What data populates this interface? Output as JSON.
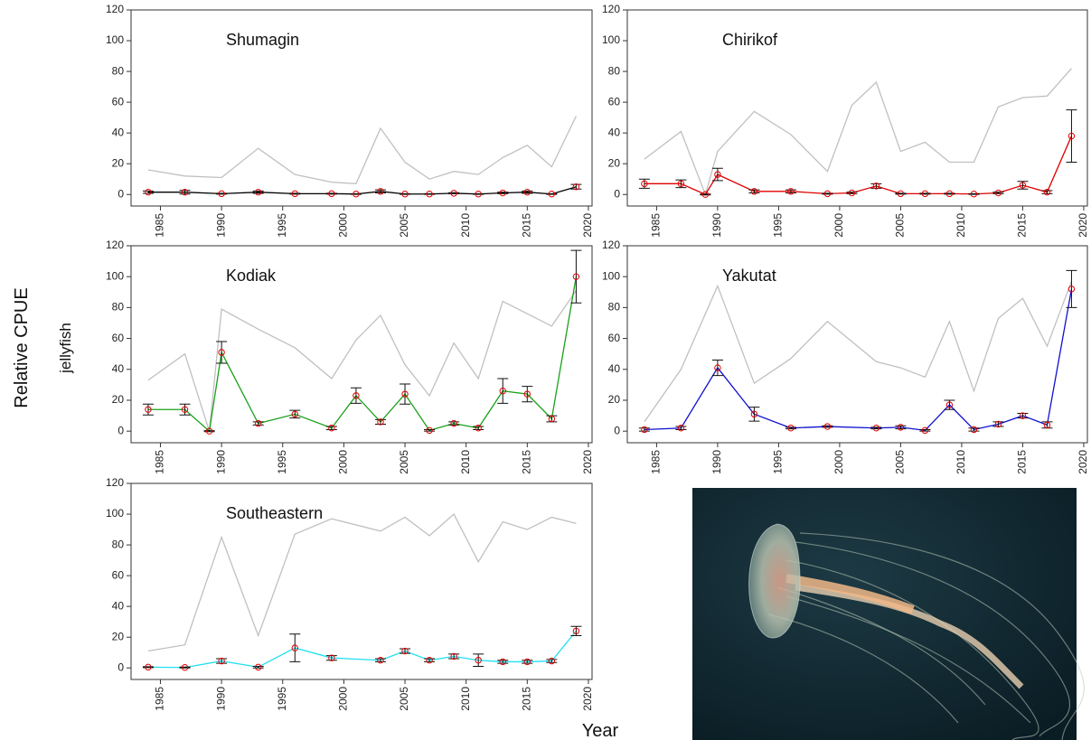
{
  "ylabel": "Relative CPUE",
  "subtitle": "jellyfish",
  "xlabel": "Year",
  "chart_data": [
    {
      "type": "line",
      "title": "Shumagin",
      "x": [
        1984,
        1987,
        1990,
        1993,
        1996,
        1999,
        2001,
        2003,
        2005,
        2007,
        2009,
        2011,
        2013,
        2015,
        2017,
        2019
      ],
      "series": [
        {
          "color": "#c0c0c0",
          "values": [
            16,
            12,
            11,
            30,
            13,
            8,
            7,
            43,
            21,
            10,
            15,
            13,
            24,
            32,
            18,
            51
          ]
        },
        {
          "color": "#000000",
          "marker_color": "#e00000",
          "values": [
            1.5,
            1.5,
            0.5,
            1.5,
            0.5,
            0.5,
            0.3,
            2,
            0.3,
            0.3,
            0.8,
            0.3,
            1,
            1.5,
            0.3,
            5
          ],
          "errors": [
            0.8,
            1.2,
            0.3,
            0.8,
            0.3,
            0.3,
            0.2,
            1,
            0.2,
            0.2,
            0.4,
            0.2,
            0.5,
            0.8,
            0.2,
            1.5
          ]
        }
      ],
      "xlim": [
        1982.6,
        2020.3
      ],
      "xticks": [
        1985,
        1990,
        1995,
        2000,
        2005,
        2010,
        2015,
        2020
      ],
      "ylim": [
        -7.5,
        120
      ],
      "yticks": [
        0,
        20,
        40,
        60,
        80,
        100,
        120
      ]
    },
    {
      "type": "line",
      "title": "Chirikof",
      "x": [
        1984,
        1987,
        1989,
        1990,
        1993,
        1996,
        1999,
        2001,
        2003,
        2005,
        2007,
        2009,
        2011,
        2013,
        2015,
        2017,
        2019
      ],
      "series": [
        {
          "color": "#c0c0c0",
          "values": [
            23,
            41,
            0,
            28,
            54,
            39,
            15,
            58,
            73,
            28,
            34,
            21,
            21,
            57,
            63,
            64,
            82
          ]
        },
        {
          "color": "#e00000",
          "marker_color": "#e00000",
          "values": [
            7,
            7,
            0,
            13,
            2,
            2,
            0.5,
            1,
            5.5,
            0.5,
            0.5,
            0.5,
            0.3,
            1,
            6,
            1.5,
            38
          ],
          "errors": [
            3,
            2.5,
            0.3,
            4,
            1,
            1,
            0.3,
            0.5,
            1.5,
            0.3,
            0.3,
            0.3,
            0.2,
            0.5,
            2.5,
            1,
            17
          ]
        }
      ],
      "xlim": [
        1982.6,
        2020.3
      ],
      "xticks": [
        1985,
        1990,
        1995,
        2000,
        2005,
        2010,
        2015,
        2020
      ],
      "ylim": [
        -7.5,
        120
      ],
      "yticks": [
        0,
        20,
        40,
        60,
        80,
        100,
        120
      ]
    },
    {
      "type": "line",
      "title": "Kodiak",
      "x": [
        1984,
        1987,
        1989,
        1990,
        1993,
        1996,
        1999,
        2001,
        2003,
        2005,
        2007,
        2009,
        2011,
        2013,
        2015,
        2017,
        2019
      ],
      "series": [
        {
          "color": "#c0c0c0",
          "values": [
            33,
            50,
            0,
            79,
            66,
            54,
            34,
            59,
            75,
            43,
            23,
            57,
            34,
            84,
            76,
            68,
            91
          ]
        },
        {
          "color": "#1aa01a",
          "marker_color": "#e00000",
          "values": [
            14,
            14,
            0,
            51,
            5,
            11,
            2,
            23,
            6,
            24,
            0.5,
            5,
            2,
            26,
            24,
            8,
            100
          ],
          "errors": [
            3.5,
            3.5,
            0.3,
            7,
            1,
            2.5,
            1,
            5,
            1.5,
            6.5,
            0.5,
            1,
            1,
            8,
            5,
            2,
            17
          ]
        }
      ],
      "xlim": [
        1982.6,
        2020.3
      ],
      "xticks": [
        1985,
        1990,
        1995,
        2000,
        2005,
        2010,
        2015,
        2020
      ],
      "ylim": [
        -7.5,
        120
      ],
      "yticks": [
        0,
        20,
        40,
        60,
        80,
        100,
        120
      ]
    },
    {
      "type": "line",
      "title": "Yakutat",
      "x": [
        1984,
        1987,
        1990,
        1993,
        1996,
        1999,
        2003,
        2005,
        2007,
        2009,
        2011,
        2013,
        2015,
        2017,
        2019
      ],
      "series": [
        {
          "color": "#c0c0c0",
          "values": [
            6,
            40,
            94,
            31,
            47,
            71,
            45,
            41,
            35,
            71,
            26,
            73,
            86,
            55,
            97
          ]
        },
        {
          "color": "#1010d0",
          "marker_color": "#e00000",
          "values": [
            1,
            2,
            41,
            11,
            2,
            3,
            2,
            2.5,
            0.5,
            17,
            1,
            4.5,
            10,
            4,
            92
          ],
          "errors": [
            1,
            1,
            5,
            4.5,
            0.5,
            0.5,
            0.5,
            1,
            0.5,
            3,
            1,
            1.5,
            1.5,
            2,
            12
          ]
        }
      ],
      "xlim": [
        1982.6,
        2020.3
      ],
      "xticks": [
        1985,
        1990,
        1995,
        2000,
        2005,
        2010,
        2015,
        2020
      ],
      "ylim": [
        -7.5,
        120
      ],
      "yticks": [
        0,
        20,
        40,
        60,
        80,
        100,
        120
      ]
    },
    {
      "type": "line",
      "title": "Southeastern",
      "x": [
        1984,
        1987,
        1990,
        1993,
        1996,
        1999,
        2003,
        2005,
        2007,
        2009,
        2011,
        2013,
        2015,
        2017,
        2019
      ],
      "series": [
        {
          "color": "#c0c0c0",
          "values": [
            11,
            15,
            85,
            21,
            87,
            97,
            89,
            98,
            86,
            100,
            69,
            95,
            90,
            98,
            94
          ]
        },
        {
          "color": "#20e0f0",
          "marker_color": "#e00000",
          "values": [
            0.5,
            0.3,
            4.5,
            0.5,
            13,
            6.5,
            5,
            11,
            5,
            7.5,
            5,
            4,
            4,
            4.5,
            24
          ],
          "errors": [
            0.3,
            0.3,
            1.5,
            0.5,
            9,
            1.5,
            1,
            1.5,
            1,
            1.5,
            4,
            1,
            1,
            1,
            3
          ]
        }
      ],
      "xlim": [
        1982.6,
        2020.3
      ],
      "xticks": [
        1985,
        1990,
        1995,
        2000,
        2005,
        2010,
        2015,
        2020
      ],
      "ylim": [
        -7.5,
        120
      ],
      "yticks": [
        0,
        20,
        40,
        60,
        80,
        100,
        120
      ]
    }
  ]
}
